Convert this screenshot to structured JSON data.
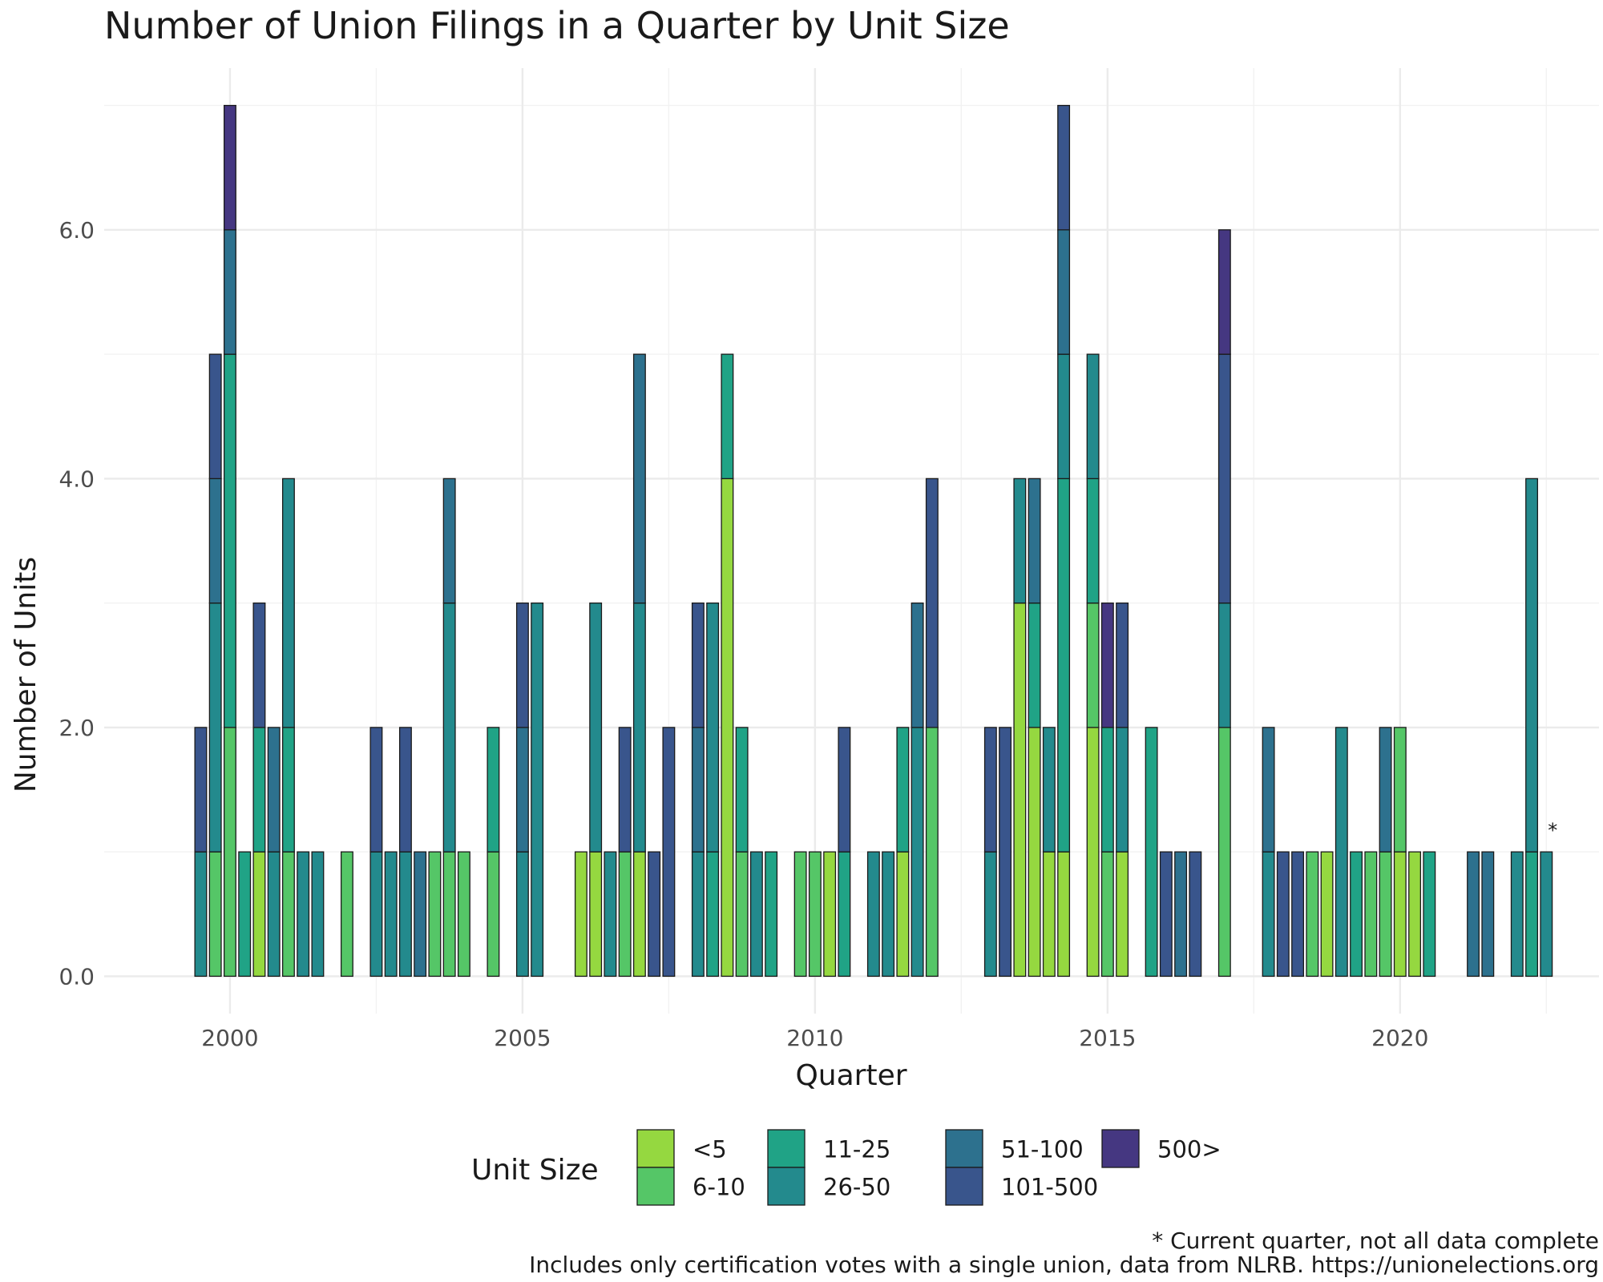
{
  "chart_data": {
    "type": "bar",
    "stacked": true,
    "title": "Number of Union Filings in a Quarter by Unit Size",
    "xlabel": "Quarter",
    "ylabel": "Number of Units",
    "x_ticks": [
      2000,
      2005,
      2010,
      2015,
      2020
    ],
    "y_ticks": [
      "0.0",
      "2.0",
      "4.0",
      "6.0"
    ],
    "ylim": [
      -0.3,
      7.3
    ],
    "xlim": [
      1997.85,
      2023.4
    ],
    "grid": true,
    "legend_title": "Unit Size",
    "legend_position": "bottom",
    "size_classes": [
      "<5",
      "6-10",
      "11-25",
      "26-50",
      "51-100",
      "101-500",
      "500>"
    ],
    "colors": {
      "<5": "#95d840",
      "6-10": "#55c667",
      "11-25": "#20a386",
      "26-50": "#238a8d",
      "51-100": "#2d718e",
      "101-500": "#39558c",
      "500>": "#453781"
    },
    "bars": [
      {
        "x": 1999.5,
        "segments": {
          "26-50": 1,
          "101-500": 1
        }
      },
      {
        "x": 1999.75,
        "segments": {
          "6-10": 1,
          "26-50": 2,
          "51-100": 1,
          "101-500": 1
        }
      },
      {
        "x": 2000.0,
        "segments": {
          "6-10": 2,
          "11-25": 3,
          "51-100": 1,
          "500>": 1
        }
      },
      {
        "x": 2000.25,
        "segments": {
          "11-25": 1
        }
      },
      {
        "x": 2000.5,
        "segments": {
          "<5": 1,
          "11-25": 1,
          "101-500": 1
        }
      },
      {
        "x": 2000.75,
        "segments": {
          "26-50": 1,
          "51-100": 1
        }
      },
      {
        "x": 2001.0,
        "segments": {
          "6-10": 1,
          "11-25": 1,
          "26-50": 2
        }
      },
      {
        "x": 2001.25,
        "segments": {
          "26-50": 1
        }
      },
      {
        "x": 2001.5,
        "segments": {
          "26-50": 1
        }
      },
      {
        "x": 2002.0,
        "segments": {
          "6-10": 1
        }
      },
      {
        "x": 2002.5,
        "segments": {
          "26-50": 1,
          "101-500": 1
        }
      },
      {
        "x": 2002.75,
        "segments": {
          "26-50": 1
        }
      },
      {
        "x": 2003.0,
        "segments": {
          "26-50": 1,
          "101-500": 1
        }
      },
      {
        "x": 2003.25,
        "segments": {
          "51-100": 1
        }
      },
      {
        "x": 2003.5,
        "segments": {
          "6-10": 1
        }
      },
      {
        "x": 2003.75,
        "segments": {
          "6-10": 1,
          "26-50": 2,
          "51-100": 1
        }
      },
      {
        "x": 2004.0,
        "segments": {
          "6-10": 1
        }
      },
      {
        "x": 2004.5,
        "segments": {
          "6-10": 1,
          "11-25": 1
        }
      },
      {
        "x": 2005.0,
        "segments": {
          "26-50": 1,
          "51-100": 1,
          "101-500": 1
        }
      },
      {
        "x": 2005.25,
        "segments": {
          "26-50": 3
        }
      },
      {
        "x": 2006.0,
        "segments": {
          "<5": 1
        }
      },
      {
        "x": 2006.25,
        "segments": {
          "<5": 1,
          "26-50": 2
        }
      },
      {
        "x": 2006.5,
        "segments": {
          "26-50": 1
        }
      },
      {
        "x": 2006.75,
        "segments": {
          "6-10": 1,
          "101-500": 1
        }
      },
      {
        "x": 2007.0,
        "segments": {
          "<5": 1,
          "26-50": 2,
          "51-100": 2
        }
      },
      {
        "x": 2007.25,
        "segments": {
          "101-500": 1
        }
      },
      {
        "x": 2007.5,
        "segments": {
          "101-500": 2
        }
      },
      {
        "x": 2008.0,
        "segments": {
          "26-50": 1,
          "51-100": 1,
          "101-500": 1
        }
      },
      {
        "x": 2008.25,
        "segments": {
          "11-25": 1,
          "26-50": 2
        }
      },
      {
        "x": 2008.5,
        "segments": {
          "<5": 4,
          "11-25": 1
        }
      },
      {
        "x": 2008.75,
        "segments": {
          "6-10": 1,
          "11-25": 1
        }
      },
      {
        "x": 2009.0,
        "segments": {
          "26-50": 1
        }
      },
      {
        "x": 2009.25,
        "segments": {
          "11-25": 1
        }
      },
      {
        "x": 2009.75,
        "segments": {
          "6-10": 1
        }
      },
      {
        "x": 2010.0,
        "segments": {
          "6-10": 1
        }
      },
      {
        "x": 2010.25,
        "segments": {
          "<5": 1
        }
      },
      {
        "x": 2010.5,
        "segments": {
          "11-25": 1,
          "101-500": 1
        }
      },
      {
        "x": 2011.0,
        "segments": {
          "26-50": 1
        }
      },
      {
        "x": 2011.25,
        "segments": {
          "26-50": 1
        }
      },
      {
        "x": 2011.5,
        "segments": {
          "<5": 1,
          "11-25": 1
        }
      },
      {
        "x": 2011.75,
        "segments": {
          "26-50": 2,
          "51-100": 1
        }
      },
      {
        "x": 2012.0,
        "segments": {
          "6-10": 2,
          "101-500": 2
        }
      },
      {
        "x": 2013.0,
        "segments": {
          "26-50": 1,
          "101-500": 1
        }
      },
      {
        "x": 2013.25,
        "segments": {
          "101-500": 2
        }
      },
      {
        "x": 2013.5,
        "segments": {
          "<5": 3,
          "26-50": 1
        }
      },
      {
        "x": 2013.75,
        "segments": {
          "<5": 2,
          "11-25": 1,
          "51-100": 1
        }
      },
      {
        "x": 2014.0,
        "segments": {
          "<5": 1,
          "26-50": 1
        }
      },
      {
        "x": 2014.25,
        "segments": {
          "<5": 1,
          "11-25": 3,
          "26-50": 1,
          "51-100": 1,
          "101-500": 1
        }
      },
      {
        "x": 2014.75,
        "segments": {
          "<5": 2,
          "6-10": 1,
          "11-25": 1,
          "26-50": 1
        }
      },
      {
        "x": 2015.0,
        "segments": {
          "6-10": 1,
          "11-25": 1,
          "500>": 1
        }
      },
      {
        "x": 2015.25,
        "segments": {
          "<5": 1,
          "26-50": 1,
          "101-500": 1
        }
      },
      {
        "x": 2015.75,
        "segments": {
          "11-25": 2
        }
      },
      {
        "x": 2016.0,
        "segments": {
          "101-500": 1
        }
      },
      {
        "x": 2016.25,
        "segments": {
          "51-100": 1
        }
      },
      {
        "x": 2016.5,
        "segments": {
          "101-500": 1
        }
      },
      {
        "x": 2017.0,
        "segments": {
          "6-10": 2,
          "26-50": 1,
          "101-500": 2,
          "500>": 1
        }
      },
      {
        "x": 2017.75,
        "segments": {
          "26-50": 1,
          "51-100": 1
        }
      },
      {
        "x": 2018.0,
        "segments": {
          "101-500": 1
        }
      },
      {
        "x": 2018.25,
        "segments": {
          "101-500": 1
        }
      },
      {
        "x": 2018.5,
        "segments": {
          "6-10": 1
        }
      },
      {
        "x": 2018.75,
        "segments": {
          "<5": 1
        }
      },
      {
        "x": 2019.0,
        "segments": {
          "26-50": 2
        }
      },
      {
        "x": 2019.25,
        "segments": {
          "11-25": 1
        }
      },
      {
        "x": 2019.5,
        "segments": {
          "6-10": 1
        }
      },
      {
        "x": 2019.75,
        "segments": {
          "6-10": 1,
          "51-100": 1
        }
      },
      {
        "x": 2020.0,
        "segments": {
          "<5": 1,
          "6-10": 1
        }
      },
      {
        "x": 2020.25,
        "segments": {
          "<5": 1
        }
      },
      {
        "x": 2020.5,
        "segments": {
          "11-25": 1
        }
      },
      {
        "x": 2021.25,
        "segments": {
          "51-100": 1
        }
      },
      {
        "x": 2021.5,
        "segments": {
          "51-100": 1
        }
      },
      {
        "x": 2022.0,
        "segments": {
          "26-50": 1
        }
      },
      {
        "x": 2022.25,
        "segments": {
          "11-25": 1,
          "26-50": 3
        }
      },
      {
        "x": 2022.5,
        "segments": {
          "26-50": 1
        }
      }
    ],
    "annotation": {
      "text": "*",
      "x": 2022.5,
      "y": 1.12
    },
    "caption_lines": [
      "* Current quarter, not all data complete",
      "Includes only certification votes with a single union, data from NLRB. https://unionelections.org"
    ]
  }
}
